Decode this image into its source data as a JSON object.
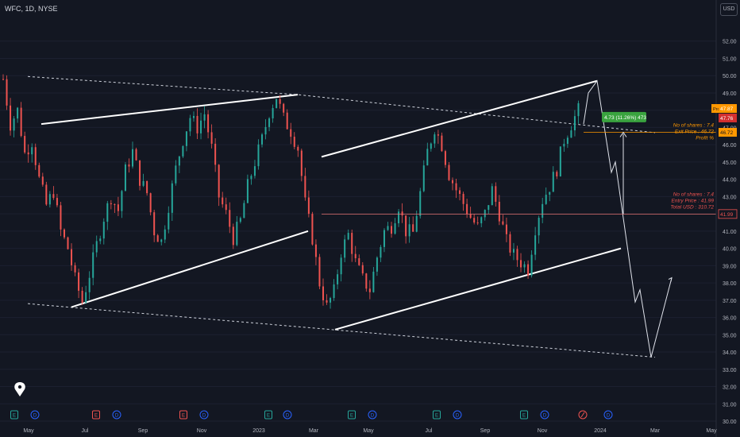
{
  "header": {
    "symbol": "WFC, 1D, NYSE",
    "currency": "USD"
  },
  "chart_data": {
    "type": "candlestick",
    "symbol": "WFC",
    "interval": "1D",
    "exchange": "NYSE",
    "ylim": [
      30.0,
      53.0
    ],
    "y_ticks": [
      30.0,
      31.0,
      32.0,
      33.0,
      34.0,
      35.0,
      36.0,
      37.0,
      38.0,
      39.0,
      40.0,
      41.0,
      42.0,
      43.0,
      44.0,
      45.0,
      46.0,
      47.0,
      48.0,
      49.0,
      50.0,
      51.0,
      52.0
    ],
    "x_ticks": [
      "May",
      "Jul",
      "Sep",
      "Nov",
      "2023",
      "Mar",
      "May",
      "Jul",
      "Sep",
      "Nov",
      "2024",
      "Mar",
      "May"
    ],
    "price_path": [
      [
        0,
        49.8
      ],
      [
        2,
        47.2
      ],
      [
        4,
        48.0
      ],
      [
        6,
        45.5
      ],
      [
        8,
        46.2
      ],
      [
        10,
        44.0
      ],
      [
        12,
        42.5
      ],
      [
        14,
        43.3
      ],
      [
        16,
        41.0
      ],
      [
        18,
        40.0
      ],
      [
        20,
        38.2
      ],
      [
        22,
        36.9
      ],
      [
        24,
        38.5
      ],
      [
        26,
        40.2
      ],
      [
        28,
        41.8
      ],
      [
        30,
        43.0
      ],
      [
        32,
        42.2
      ],
      [
        34,
        44.5
      ],
      [
        36,
        45.6
      ],
      [
        38,
        44.0
      ],
      [
        40,
        43.2
      ],
      [
        42,
        41.0
      ],
      [
        44,
        40.4
      ],
      [
        46,
        42.5
      ],
      [
        48,
        44.6
      ],
      [
        50,
        46.3
      ],
      [
        52,
        47.6
      ],
      [
        54,
        47.0
      ],
      [
        56,
        47.8
      ],
      [
        58,
        45.8
      ],
      [
        60,
        43.0
      ],
      [
        62,
        42.0
      ],
      [
        64,
        40.6
      ],
      [
        66,
        41.6
      ],
      [
        68,
        43.6
      ],
      [
        70,
        45.0
      ],
      [
        72,
        46.3
      ],
      [
        74,
        47.9
      ],
      [
        76,
        48.8
      ],
      [
        78,
        47.5
      ],
      [
        80,
        46.8
      ],
      [
        82,
        45.8
      ],
      [
        84,
        42.6
      ],
      [
        86,
        40.6
      ],
      [
        88,
        38.0
      ],
      [
        90,
        36.6
      ],
      [
        92,
        37.5
      ],
      [
        94,
        39.8
      ],
      [
        96,
        40.8
      ],
      [
        98,
        39.2
      ],
      [
        100,
        38.2
      ],
      [
        102,
        37.6
      ],
      [
        104,
        39.5
      ],
      [
        106,
        41.0
      ],
      [
        108,
        41.3
      ],
      [
        110,
        42.5
      ],
      [
        112,
        41.0
      ],
      [
        114,
        40.9
      ],
      [
        116,
        43.2
      ],
      [
        118,
        45.6
      ],
      [
        120,
        47.0
      ],
      [
        122,
        46.0
      ],
      [
        124,
        44.3
      ],
      [
        126,
        43.4
      ],
      [
        128,
        42.6
      ],
      [
        130,
        41.8
      ],
      [
        132,
        41.2
      ],
      [
        134,
        42.0
      ],
      [
        136,
        43.4
      ],
      [
        138,
        42.0
      ],
      [
        140,
        40.4
      ],
      [
        142,
        39.6
      ],
      [
        144,
        39.2
      ],
      [
        146,
        38.8
      ],
      [
        148,
        41.2
      ],
      [
        150,
        42.8
      ],
      [
        152,
        43.6
      ],
      [
        154,
        44.6
      ],
      [
        156,
        46.3
      ],
      [
        158,
        47.2
      ],
      [
        160,
        48.0
      ]
    ],
    "last_close": 47.76,
    "price_labels": {
      "last": "47.76",
      "extra": "47.87",
      "exit": "46.72",
      "entry": "41.99"
    },
    "trade": {
      "entry_price": 41.99,
      "exit_price": 46.72,
      "shares": 7.4,
      "total_usd": 310.72,
      "profit_badge": "4.73 (11.26%) 473",
      "exit_note": [
        "No of shares : 7.4",
        "Exit Price    : 46.72",
        "Profit %"
      ],
      "entry_note": [
        "No of shares : 7.4",
        "Entry Price   : 41.99",
        "Total USD    : 310.72"
      ]
    },
    "lines": [
      {
        "kind": "channel-dashed",
        "points": [
          [
            35,
            49.95
          ],
          [
            375,
            48.9
          ],
          [
            825,
            46.7
          ]
        ]
      },
      {
        "kind": "channel-dashed",
        "points": [
          [
            35,
            36.8
          ],
          [
            825,
            33.7
          ]
        ]
      },
      {
        "kind": "trend-solid",
        "points": [
          [
            52,
            47.2
          ],
          [
            375,
            48.9
          ]
        ]
      },
      {
        "kind": "trend-solid",
        "points": [
          [
            90,
            36.6
          ],
          [
            388,
            41.0
          ]
        ]
      },
      {
        "kind": "trend-solid",
        "points": [
          [
            405,
            45.3
          ],
          [
            752,
            49.7
          ]
        ]
      },
      {
        "kind": "trend-solid",
        "points": [
          [
            422,
            35.3
          ],
          [
            782,
            40.0
          ]
        ]
      },
      {
        "kind": "projection",
        "points": [
          [
            735,
            47.2
          ],
          [
            741,
            49.0
          ],
          [
            752,
            49.7
          ],
          [
            770,
            44.4
          ],
          [
            775,
            45.0
          ],
          [
            800,
            36.9
          ],
          [
            806,
            37.6
          ],
          [
            820,
            33.7
          ],
          [
            846,
            38.3
          ]
        ]
      }
    ],
    "event_markers": [
      "E",
      "D",
      "E",
      "D",
      "E",
      "D",
      "E",
      "D",
      "E",
      "D",
      "E",
      "D",
      "E",
      "D",
      "E",
      "D",
      "E"
    ]
  }
}
